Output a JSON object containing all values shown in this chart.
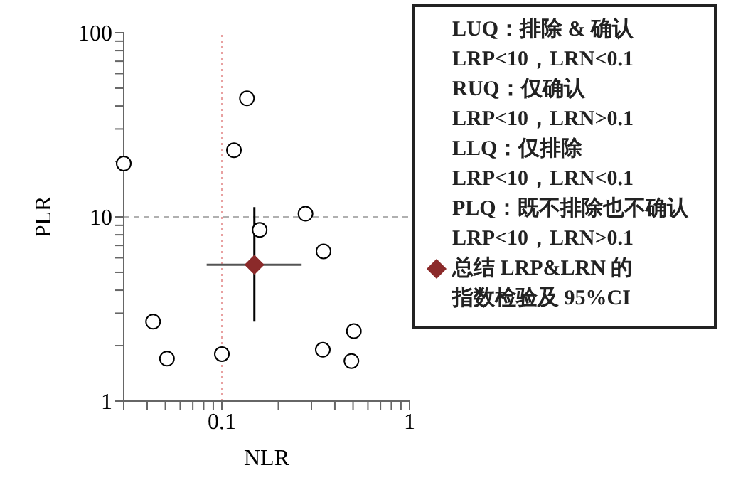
{
  "chart_data": {
    "type": "scatter",
    "xlabel": "NLR",
    "ylabel": "PLR",
    "log": "xy",
    "xlim": [
      0.03,
      1
    ],
    "ylim": [
      1,
      100
    ],
    "xticks": [
      {
        "value": 0.03,
        "label": null
      },
      {
        "value": 0.04,
        "label": null
      },
      {
        "value": 0.05,
        "label": null
      },
      {
        "value": 0.06,
        "label": null
      },
      {
        "value": 0.07,
        "label": null
      },
      {
        "value": 0.08,
        "label": null
      },
      {
        "value": 0.09,
        "label": null
      },
      0.1,
      {
        "value": 0.2,
        "label": null
      },
      {
        "value": 0.3,
        "label": null
      },
      {
        "value": 0.4,
        "label": null
      },
      {
        "value": 0.5,
        "label": null
      },
      {
        "value": 0.6,
        "label": null
      },
      {
        "value": 0.7,
        "label": null
      },
      {
        "value": 0.8,
        "label": null
      },
      {
        "value": 0.9,
        "label": null
      },
      1
    ],
    "yticks": [
      1,
      {
        "value": 2,
        "label": null
      },
      {
        "value": 3,
        "label": null
      },
      {
        "value": 4,
        "label": null
      },
      {
        "value": 5,
        "label": null
      },
      {
        "value": 6,
        "label": null
      },
      {
        "value": 7,
        "label": null
      },
      {
        "value": 8,
        "label": null
      },
      {
        "value": 9,
        "label": null
      },
      10,
      {
        "value": 20,
        "label": null
      },
      {
        "value": 30,
        "label": null
      },
      {
        "value": 40,
        "label": null
      },
      {
        "value": 50,
        "label": null
      },
      {
        "value": 60,
        "label": null
      },
      {
        "value": 70,
        "label": null
      },
      {
        "value": 80,
        "label": null
      },
      {
        "value": 90,
        "label": null
      },
      100
    ],
    "grid": false,
    "legend": "right",
    "ref_lines": [
      {
        "axis": "x",
        "value": 0.1,
        "color": "#e8a0a0",
        "line_style": "dotted"
      },
      {
        "axis": "y",
        "value": 10,
        "color": "#b0b0b0",
        "line_style": "dashed"
      }
    ],
    "annotations": [
      "LUQ：排除 & 确认",
      "LRP<10，LRN<0.1",
      "RUQ：仅确认",
      "LRP<10，LRN>0.1",
      "LLQ：仅排除",
      "LRP<10，LRN<0.1",
      "PLQ：既不排除也不确认",
      "LRP<10，LRN>0.1"
    ],
    "series": [
      {
        "color": "#000000",
        "marker": "circle",
        "x": [
          0.03,
          0.043,
          0.051,
          0.1,
          0.116,
          0.136,
          0.159,
          0.279,
          0.348,
          0.345,
          0.505,
          0.49
        ],
        "values": [
          19.5,
          2.7,
          1.7,
          1.8,
          23,
          44,
          8.5,
          10.4,
          6.5,
          1.9,
          2.4,
          1.65
        ]
      },
      {
        "name": "总结 LRP&LRN 的指数检验及 95%CI",
        "color": "#8b2a2a",
        "marker": "diamond",
        "x": [
          0.149
        ],
        "values": [
          5.5
        ],
        "errors": [
          [
            2.7,
            11.3
          ]
        ],
        "xerrors": [
          [
            0.083,
            0.266
          ]
        ]
      }
    ]
  }
}
